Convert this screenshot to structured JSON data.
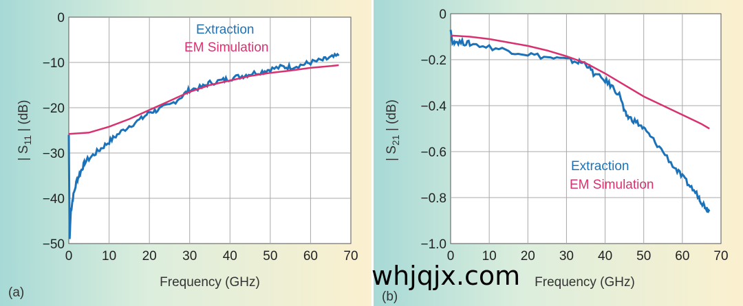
{
  "colors": {
    "extraction": "#1c72b8",
    "em_simulation": "#d8316f",
    "grid": "#a8a8a8"
  },
  "watermark": "whjqjx.com",
  "chart_data": [
    {
      "type": "line",
      "panel_label": "(a)",
      "xlabel": "Frequency (GHz)",
      "ylabel_parts": {
        "pre": "| S",
        "sub": "11",
        "post": " | (dB)"
      },
      "xlim": [
        0,
        70
      ],
      "ylim": [
        -50,
        0
      ],
      "xticks": [
        "0",
        "10",
        "20",
        "30",
        "40",
        "50",
        "60",
        "70"
      ],
      "yticks": [
        "0",
        "−10",
        "−20",
        "−30",
        "−40",
        "−50"
      ],
      "grid": true,
      "legend_position": "top-right",
      "series": [
        {
          "name": "Extraction",
          "x": [
            0,
            0.2,
            0.5,
            1,
            2,
            3,
            4,
            6,
            8,
            10,
            12,
            15,
            18,
            20,
            22,
            25,
            28,
            30,
            33,
            35,
            38,
            40,
            43,
            45,
            48,
            50,
            53,
            55,
            58,
            60,
            63,
            65,
            67
          ],
          "y": [
            -26,
            -49,
            -43,
            -40,
            -36,
            -34,
            -32,
            -30.5,
            -29,
            -27.5,
            -26,
            -24,
            -22.5,
            -21,
            -20.5,
            -19.5,
            -17.5,
            -16,
            -15.5,
            -14.5,
            -14,
            -13.5,
            -13,
            -12.5,
            -12,
            -11.5,
            -11,
            -11,
            -10.5,
            -10,
            -9.5,
            -9,
            -8.5
          ]
        },
        {
          "name": "EM Simulation",
          "x": [
            0,
            5,
            10,
            15,
            20,
            25,
            30,
            35,
            40,
            45,
            50,
            55,
            60,
            65,
            67
          ],
          "y": [
            -25.8,
            -25.5,
            -24.2,
            -22.5,
            -20.5,
            -18.5,
            -16.5,
            -15,
            -14,
            -13,
            -12.3,
            -11.8,
            -11.2,
            -10.8,
            -10.6
          ]
        }
      ]
    },
    {
      "type": "line",
      "panel_label": "(b)",
      "xlabel": "Frequency (GHz)",
      "ylabel_parts": {
        "pre": "| S",
        "sub": "21",
        "post": " | (dB)"
      },
      "xlim": [
        0,
        70
      ],
      "ylim": [
        -1.0,
        0
      ],
      "xticks": [
        "0",
        "10",
        "20",
        "30",
        "40",
        "50",
        "60",
        "70"
      ],
      "yticks": [
        "0",
        "−0.2",
        "−0.4",
        "−0.6",
        "−0.8",
        "−1.0"
      ],
      "grid": true,
      "legend_position": "bottom-right",
      "series": [
        {
          "name": "Extraction",
          "x": [
            0,
            0.5,
            1,
            3,
            5,
            10,
            15,
            20,
            25,
            30,
            33,
            35,
            37,
            40,
            42,
            44,
            45,
            46,
            48,
            50,
            52,
            55,
            58,
            60,
            62,
            64,
            65,
            66,
            67
          ],
          "y": [
            -0.07,
            -0.13,
            -0.12,
            -0.125,
            -0.13,
            -0.145,
            -0.16,
            -0.175,
            -0.19,
            -0.2,
            -0.21,
            -0.215,
            -0.26,
            -0.29,
            -0.32,
            -0.36,
            -0.43,
            -0.45,
            -0.47,
            -0.5,
            -0.54,
            -0.6,
            -0.67,
            -0.71,
            -0.75,
            -0.79,
            -0.82,
            -0.84,
            -0.86
          ]
        },
        {
          "name": "EM Simulation",
          "x": [
            0,
            5,
            10,
            15,
            20,
            25,
            30,
            35,
            40,
            45,
            50,
            55,
            60,
            65,
            67
          ],
          "y": [
            -0.095,
            -0.1,
            -0.11,
            -0.125,
            -0.14,
            -0.16,
            -0.185,
            -0.215,
            -0.26,
            -0.31,
            -0.36,
            -0.4,
            -0.44,
            -0.48,
            -0.5
          ]
        }
      ]
    }
  ]
}
